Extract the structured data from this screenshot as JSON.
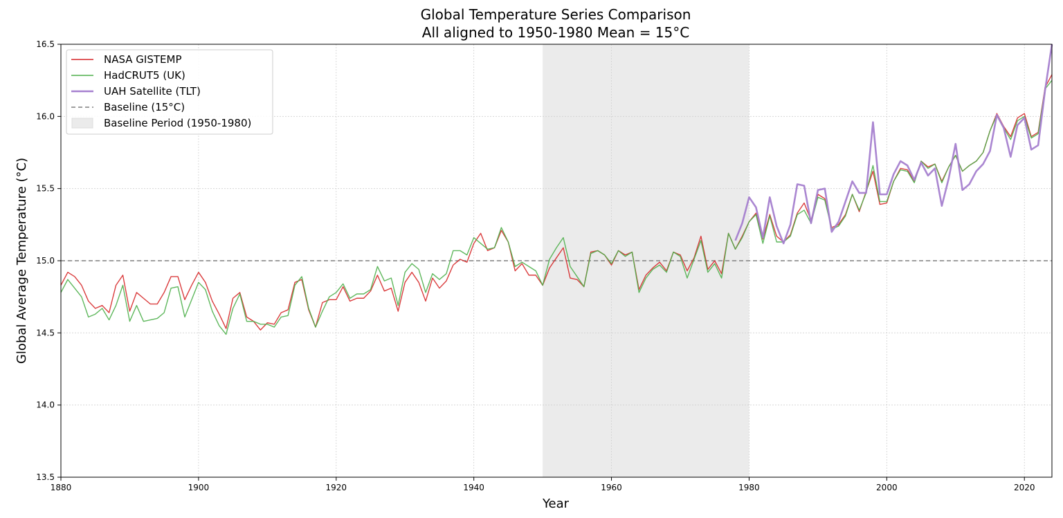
{
  "chart_data": {
    "type": "line",
    "title": "Global Temperature Series Comparison",
    "subtitle": "All aligned to 1950-1980 Mean = 15°C",
    "xlabel": "Year",
    "ylabel": "Global Average Temperature (°C)",
    "xlim": [
      1880,
      2024
    ],
    "ylim": [
      13.5,
      16.5
    ],
    "xticks": [
      1880,
      1900,
      1920,
      1940,
      1960,
      1980,
      2000,
      2020
    ],
    "yticks": [
      13.5,
      14.0,
      14.5,
      15.0,
      15.5,
      16.0,
      16.5
    ],
    "xtick_labels": [
      "1880",
      "1900",
      "1920",
      "1940",
      "1960",
      "1980",
      "2000",
      "2020"
    ],
    "ytick_labels": [
      "13.5",
      "14.0",
      "14.5",
      "15.0",
      "15.5",
      "16.0",
      "16.5"
    ],
    "grid": true,
    "legend_position": "top-left",
    "baseline": {
      "label": "Baseline (15°C)",
      "value": 15.0,
      "color": "#7f7f7f",
      "style": "dashed"
    },
    "baseline_period": {
      "label": "Baseline Period (1950-1980)",
      "start": 1950,
      "end": 1980,
      "color": "#ebebeb"
    },
    "series": [
      {
        "name": "NASA GISTEMP",
        "color": "#d62728",
        "x_start": 1880,
        "values": [
          14.83,
          14.92,
          14.89,
          14.83,
          14.72,
          14.67,
          14.69,
          14.64,
          14.83,
          14.9,
          14.65,
          14.78,
          14.74,
          14.7,
          14.7,
          14.78,
          14.89,
          14.89,
          14.73,
          14.83,
          14.92,
          14.85,
          14.72,
          14.63,
          14.53,
          14.74,
          14.78,
          14.61,
          14.58,
          14.52,
          14.57,
          14.56,
          14.64,
          14.66,
          14.85,
          14.87,
          14.66,
          14.54,
          14.71,
          14.73,
          14.73,
          14.82,
          14.72,
          14.74,
          14.74,
          14.79,
          14.9,
          14.79,
          14.81,
          14.65,
          14.85,
          14.92,
          14.85,
          14.72,
          14.88,
          14.81,
          14.86,
          14.97,
          15.01,
          14.99,
          15.12,
          15.19,
          15.07,
          15.09,
          15.21,
          15.13,
          14.93,
          14.98,
          14.9,
          14.9,
          14.83,
          14.95,
          15.02,
          15.09,
          14.88,
          14.87,
          14.82,
          15.06,
          15.07,
          15.04,
          14.97,
          15.07,
          15.04,
          15.06,
          14.8,
          14.9,
          14.95,
          14.99,
          14.93,
          15.06,
          15.04,
          14.93,
          15.02,
          15.17,
          14.94,
          15.0,
          14.91,
          15.19,
          15.08,
          15.17,
          15.27,
          15.33,
          15.15,
          15.32,
          15.17,
          15.13,
          15.18,
          15.33,
          15.4,
          15.28,
          15.46,
          15.43,
          15.23,
          15.25,
          15.32,
          15.46,
          15.34,
          15.48,
          15.62,
          15.39,
          15.4,
          15.55,
          15.64,
          15.63,
          15.55,
          15.69,
          15.65,
          15.67,
          15.55,
          15.65,
          15.73,
          15.62,
          15.66,
          15.69,
          15.75,
          15.9,
          16.02,
          15.93,
          15.86,
          15.99,
          16.02,
          15.86,
          15.89,
          16.2,
          16.29
        ]
      },
      {
        "name": "HadCRUT5 (UK)",
        "color": "#4daf4a",
        "x_start": 1880,
        "values": [
          14.78,
          14.87,
          14.81,
          14.75,
          14.61,
          14.63,
          14.67,
          14.59,
          14.69,
          14.83,
          14.58,
          14.69,
          14.58,
          14.59,
          14.6,
          14.64,
          14.81,
          14.82,
          14.61,
          14.73,
          14.85,
          14.8,
          14.65,
          14.55,
          14.49,
          14.67,
          14.77,
          14.58,
          14.58,
          14.56,
          14.56,
          14.54,
          14.61,
          14.62,
          14.83,
          14.89,
          14.67,
          14.54,
          14.65,
          14.75,
          14.78,
          14.84,
          14.74,
          14.77,
          14.77,
          14.8,
          14.96,
          14.86,
          14.88,
          14.69,
          14.92,
          14.98,
          14.94,
          14.78,
          14.91,
          14.87,
          14.91,
          15.07,
          15.07,
          15.04,
          15.16,
          15.12,
          15.08,
          15.09,
          15.23,
          15.13,
          14.96,
          14.99,
          14.96,
          14.93,
          14.83,
          15.01,
          15.09,
          15.16,
          14.96,
          14.89,
          14.82,
          15.05,
          15.07,
          15.04,
          14.98,
          15.07,
          15.03,
          15.06,
          14.78,
          14.88,
          14.94,
          14.97,
          14.92,
          15.06,
          15.03,
          14.88,
          15.01,
          15.14,
          14.92,
          14.98,
          14.88,
          15.19,
          15.08,
          15.16,
          15.27,
          15.32,
          15.12,
          15.31,
          15.13,
          15.13,
          15.17,
          15.32,
          15.35,
          15.26,
          15.44,
          15.42,
          15.22,
          15.24,
          15.31,
          15.46,
          15.35,
          15.47,
          15.66,
          15.41,
          15.41,
          15.55,
          15.63,
          15.62,
          15.54,
          15.69,
          15.64,
          15.67,
          15.54,
          15.65,
          15.73,
          15.62,
          15.66,
          15.69,
          15.75,
          15.9,
          16.01,
          15.92,
          15.84,
          15.97,
          16.0,
          15.85,
          15.88,
          16.19,
          16.25
        ]
      },
      {
        "name": "UAH Satellite (TLT)",
        "color": "#a57fcf",
        "x_start": 1978,
        "values": [
          15.14,
          15.26,
          15.44,
          15.37,
          15.16,
          15.44,
          15.24,
          15.12,
          15.25,
          15.53,
          15.52,
          15.26,
          15.49,
          15.5,
          15.2,
          15.27,
          15.41,
          15.55,
          15.47,
          15.47,
          15.96,
          15.46,
          15.46,
          15.6,
          15.69,
          15.66,
          15.56,
          15.68,
          15.59,
          15.64,
          15.38,
          15.57,
          15.81,
          15.49,
          15.53,
          15.62,
          15.67,
          15.76,
          16.01,
          15.92,
          15.72,
          15.94,
          15.99,
          15.77,
          15.8,
          16.18,
          16.5
        ]
      }
    ]
  }
}
